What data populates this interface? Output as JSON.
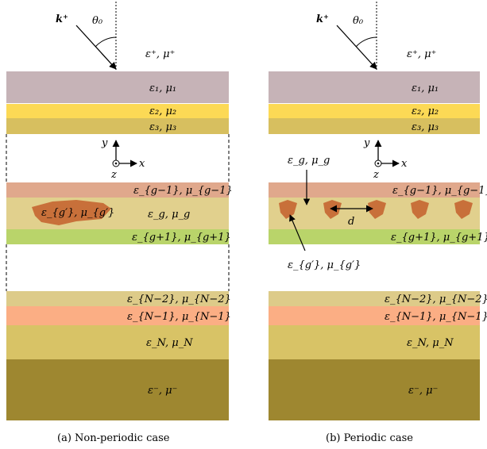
{
  "colors": {
    "layer1": "#c6b3b7",
    "layer2": "#fcd955",
    "layer3": "#d7bf5f",
    "layer_g_minus": "#e0a88c",
    "layer_g": "#e1d08d",
    "layer_g_plus": "#b9d46a",
    "layer_n_minus2": "#ddcb89",
    "layer_n_minus1": "#fbae84",
    "layer_n": "#d8c366",
    "substrate": "#9e8730",
    "inclusion": "#c8703a"
  },
  "panels": [
    {
      "id": "a",
      "caption": "(a)   Non-periodic case",
      "incident_label": "k⁺",
      "angle_label": "θ₀",
      "top_medium": "ε⁺, μ⁺",
      "layers": [
        "ε₁, μ₁",
        "ε₂, μ₂",
        "ε₃, μ₃",
        "ε_{g−1}, μ_{g−1}",
        "ε_g, μ_g",
        "ε_{g+1}, μ_{g+1}",
        "ε_{N−2}, μ_{N−2}",
        "ε_{N−1}, μ_{N−1}",
        "ε_N, μ_N"
      ],
      "substrate": "ε⁻, μ⁻",
      "inclusion_label": "ε_{g′}, μ_{g′}",
      "axes": {
        "y": "y",
        "z": "z",
        "x": "x"
      }
    },
    {
      "id": "b",
      "caption": "(b)   Periodic case",
      "incident_label": "k⁺",
      "angle_label": "θ₀",
      "top_medium": "ε⁺, μ⁺",
      "layers": [
        "ε₁, μ₁",
        "ε₂, μ₂",
        "ε₃, μ₃",
        "ε_{g−1}, μ_{g−1}",
        "ε_{g+1}, μ_{g+1}",
        "ε_{N−2}, μ_{N−2}",
        "ε_{N−1}, μ_{N−1}",
        "ε_N, μ_N"
      ],
      "substrate": "ε⁻, μ⁻",
      "grating_label": "ε_g, μ_g",
      "inclusion_label": "ε_{g′}, μ_{g′}",
      "period_label": "d",
      "axes": {
        "y": "y",
        "z": "z",
        "x": "x"
      }
    }
  ]
}
